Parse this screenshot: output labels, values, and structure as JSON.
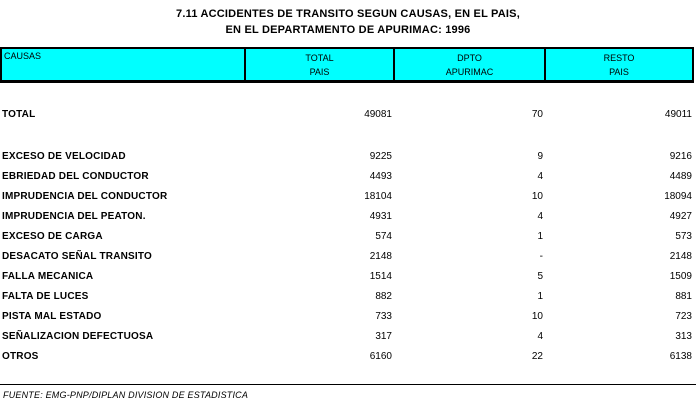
{
  "title": {
    "line1": "7.11 ACCIDENTES DE TRANSITO SEGUN CAUSAS, EN EL PAIS,",
    "line2": "EN EL DEPARTAMENTO DE APURIMAC: 1996"
  },
  "colors": {
    "header_bg": "#00FFFF",
    "border": "#000000",
    "text": "#000000"
  },
  "table": {
    "header": {
      "causes": "CAUSAS",
      "total_line1": "TOTAL",
      "total_line2": "PAIS",
      "dpto_line1": "DPTO",
      "dpto_line2": "APURIMAC",
      "resto_line1": "RESTO",
      "resto_line2": "PAIS"
    },
    "total_row": {
      "label": "TOTAL",
      "total": "49081",
      "dpto": "70",
      "resto": "49011"
    },
    "rows": [
      {
        "label": "EXCESO DE VELOCIDAD",
        "total": "9225",
        "dpto": "9",
        "resto": "9216"
      },
      {
        "label": "EBRIEDAD DEL CONDUCTOR",
        "total": "4493",
        "dpto": "4",
        "resto": "4489"
      },
      {
        "label": "IMPRUDENCIA DEL CONDUCTOR",
        "total": "18104",
        "dpto": "10",
        "resto": "18094"
      },
      {
        "label": "IMPRUDENCIA DEL PEATON.",
        "total": "4931",
        "dpto": "4",
        "resto": "4927"
      },
      {
        "label": "EXCESO DE CARGA",
        "total": "574",
        "dpto": "1",
        "resto": "573"
      },
      {
        "label": "DESACATO SEÑAL TRANSITO",
        "total": "2148",
        "dpto": "-",
        "resto": "2148"
      },
      {
        "label": "FALLA MECANICA",
        "total": "1514",
        "dpto": "5",
        "resto": "1509"
      },
      {
        "label": "FALTA DE LUCES",
        "total": "882",
        "dpto": "1",
        "resto": "881"
      },
      {
        "label": "PISTA MAL ESTADO",
        "total": "733",
        "dpto": "10",
        "resto": "723"
      },
      {
        "label": "SEÑALIZACION DEFECTUOSA",
        "total": "317",
        "dpto": "4",
        "resto": "313"
      },
      {
        "label": "OTROS",
        "total": "6160",
        "dpto": "22",
        "resto": "6138"
      }
    ]
  },
  "footer": {
    "source": "FUENTE: EMG-PNP/DIPLAN DIVISION DE ESTADISTICA"
  }
}
